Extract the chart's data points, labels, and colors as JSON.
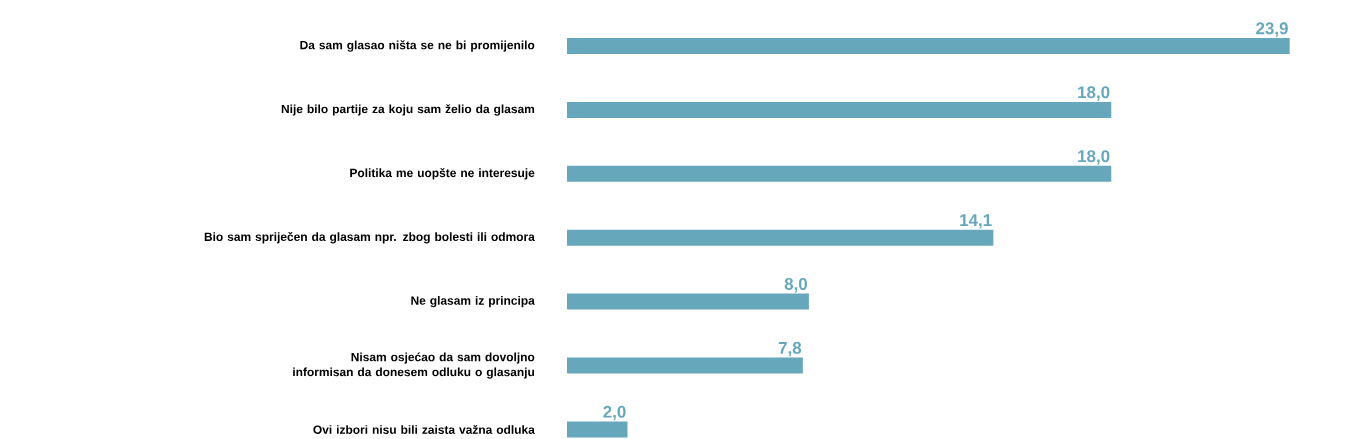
{
  "chart_data": {
    "type": "bar",
    "orientation": "horizontal",
    "categories": [
      "Da sam glasao ništa se ne bi promijenilo",
      "Nije bilo partije za koju sam želio da glasam",
      "Politika me uopšte ne interesuje",
      "Bio sam spriječen da glasam npr. zbog bolesti ili odmora",
      "Ne glasam iz principa",
      "Nisam osjećao da sam dovoljno\ninformisan da donesem odluku o glasanju",
      "Ovi izbori nisu bili zaista važna odluka"
    ],
    "values": [
      23.9,
      18.0,
      18.0,
      14.1,
      8.0,
      7.8,
      2.0
    ],
    "value_labels": [
      "23,9",
      "18,0",
      "18,0",
      "14,1",
      "8,0",
      "7,8",
      "2,0"
    ],
    "color": "#67a7bc"
  }
}
